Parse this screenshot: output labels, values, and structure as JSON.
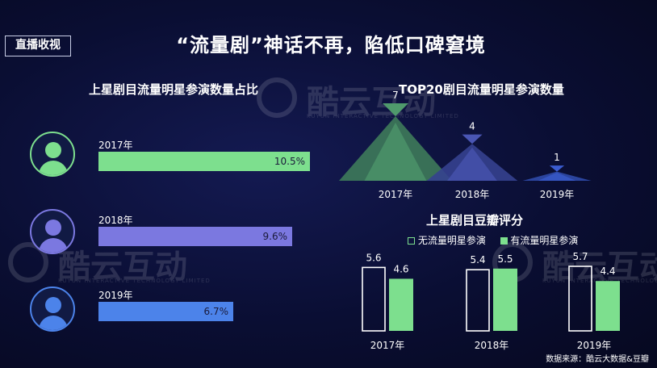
{
  "tag": "直播收视",
  "main_title": "“流量剧”神话不再，陷低口碑窘境",
  "watermark": {
    "brand": "酷云互动",
    "sub": "KUYUN INTERACTIVE TECHNOLOGY LIMITED"
  },
  "colors": {
    "green": "#7ddf8e",
    "purple": "#7b78e0",
    "blue": "#4c83ea",
    "outline": "#ffffff"
  },
  "footer": "数据来源：酷云大数据&豆瓣",
  "chart_data": [
    {
      "type": "bar",
      "title": "上星剧目流量明星参演数量占比",
      "orientation": "horizontal",
      "categories": [
        "2017年",
        "2018年",
        "2019年"
      ],
      "values": [
        10.5,
        9.6,
        6.7
      ],
      "value_labels": [
        "10.5%",
        "9.6%",
        "6.7%"
      ],
      "unit": "%",
      "xlim": [
        0,
        10.5
      ]
    },
    {
      "type": "bar",
      "title": "TOP20剧目流量明星参演数量",
      "categories": [
        "2017年",
        "2018年",
        "2019年"
      ],
      "values": [
        7,
        4,
        1
      ],
      "value_labels": [
        "7",
        "4",
        "1"
      ]
    },
    {
      "type": "bar",
      "title": "上星剧目豆瓣评分",
      "categories": [
        "2017年",
        "2018年",
        "2019年"
      ],
      "legend_position": "top",
      "series": [
        {
          "name": "无流量明星参演",
          "values": [
            5.6,
            5.4,
            5.7
          ],
          "value_labels": [
            "5.6",
            "5.4",
            "5.7"
          ],
          "style": "outline"
        },
        {
          "name": "有流量明星参演",
          "values": [
            4.6,
            5.5,
            4.4
          ],
          "value_labels": [
            "4.6",
            "5.5",
            "4.4"
          ],
          "style": "filled"
        }
      ],
      "ylim": [
        0,
        5.7
      ]
    }
  ]
}
